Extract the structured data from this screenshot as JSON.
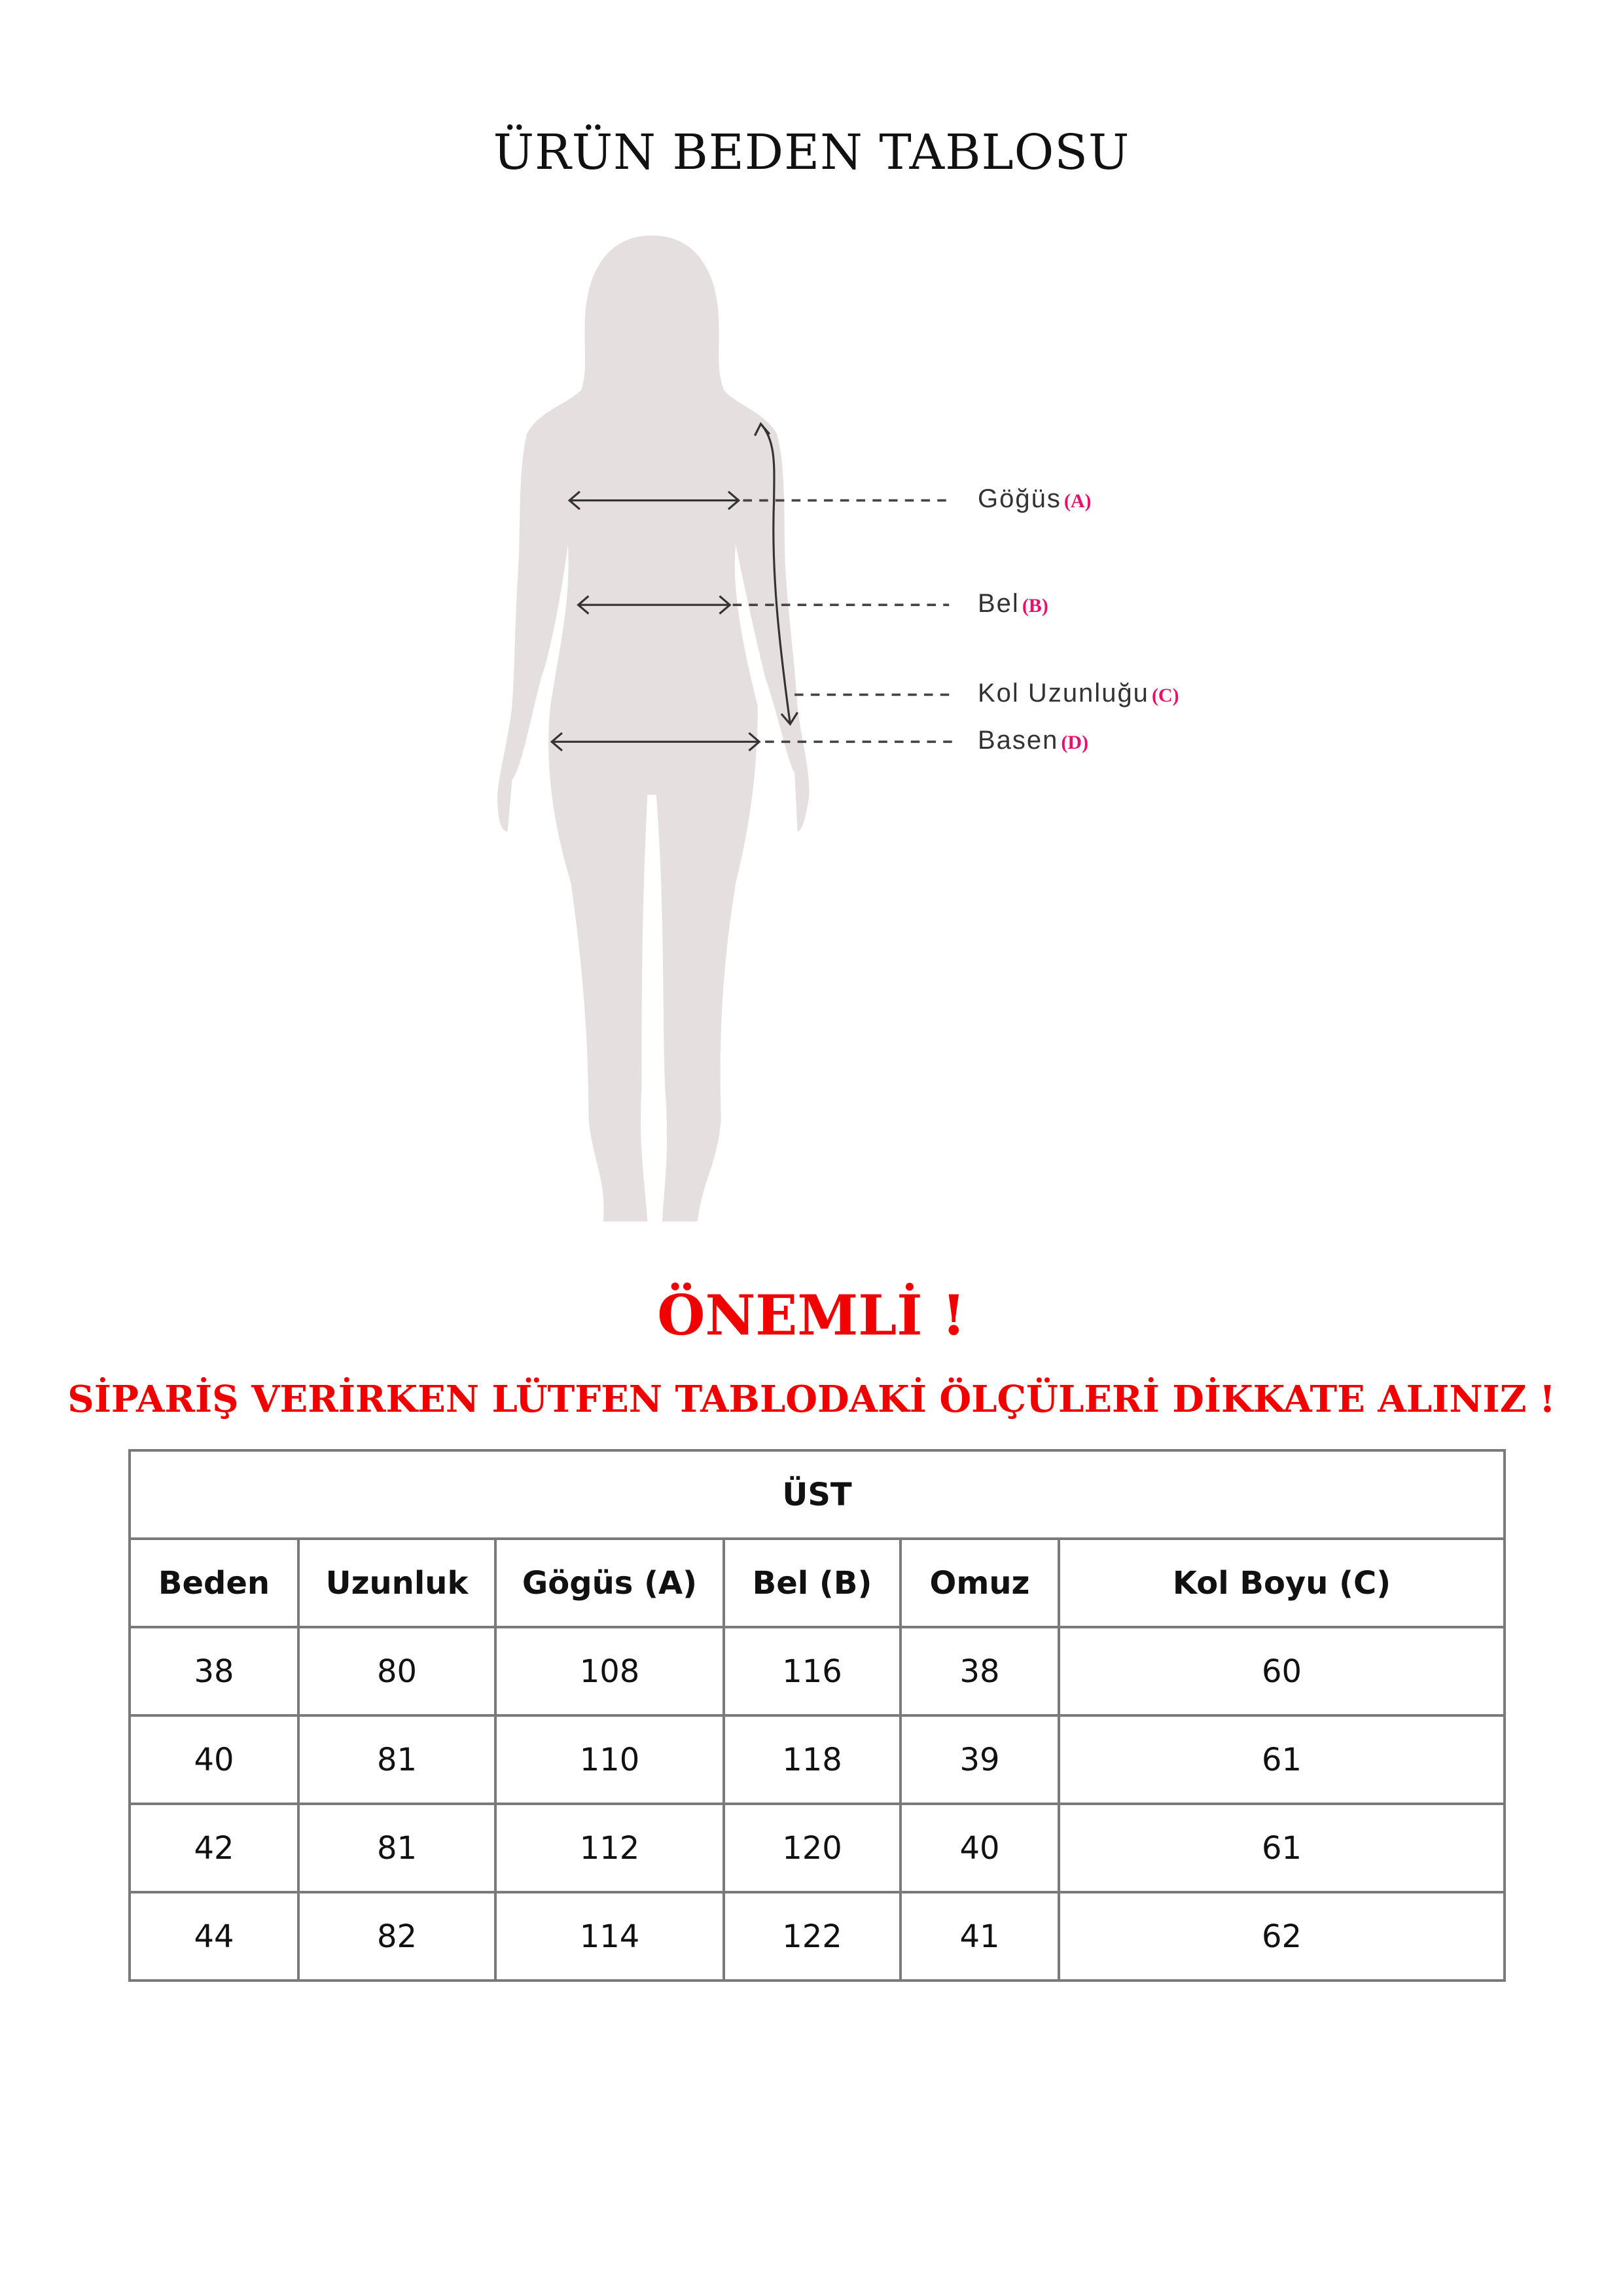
{
  "title": "ÜRÜN BEDEN TABLOSU",
  "diagram": {
    "labels": [
      {
        "name": "Göğüs",
        "code": "(A)"
      },
      {
        "name": "Bel",
        "code": "(B)"
      },
      {
        "name": "Kol Uzunluğu",
        "code": "(C)"
      },
      {
        "name": "Basen",
        "code": "(D)"
      }
    ],
    "code_color": "#e8106a",
    "silhouette_color": "#e6dfe0"
  },
  "important": "ÖNEMLİ !",
  "notice": "SİPARİŞ VERİRKEN LÜTFEN TABLODAKİ ÖLÇÜLERİ DİKKATE ALINIZ !",
  "warning_color": "#f20000",
  "table": {
    "section": "ÜST",
    "headers": [
      "Beden",
      "Uzunluk",
      "Gögüs (A)",
      "Bel (B)",
      "Omuz",
      "Kol Boyu (C)"
    ],
    "rows": [
      [
        "38",
        "80",
        "108",
        "116",
        "38",
        "60"
      ],
      [
        "40",
        "81",
        "110",
        "118",
        "39",
        "61"
      ],
      [
        "42",
        "81",
        "112",
        "120",
        "40",
        "61"
      ],
      [
        "44",
        "82",
        "114",
        "122",
        "41",
        "62"
      ]
    ]
  }
}
